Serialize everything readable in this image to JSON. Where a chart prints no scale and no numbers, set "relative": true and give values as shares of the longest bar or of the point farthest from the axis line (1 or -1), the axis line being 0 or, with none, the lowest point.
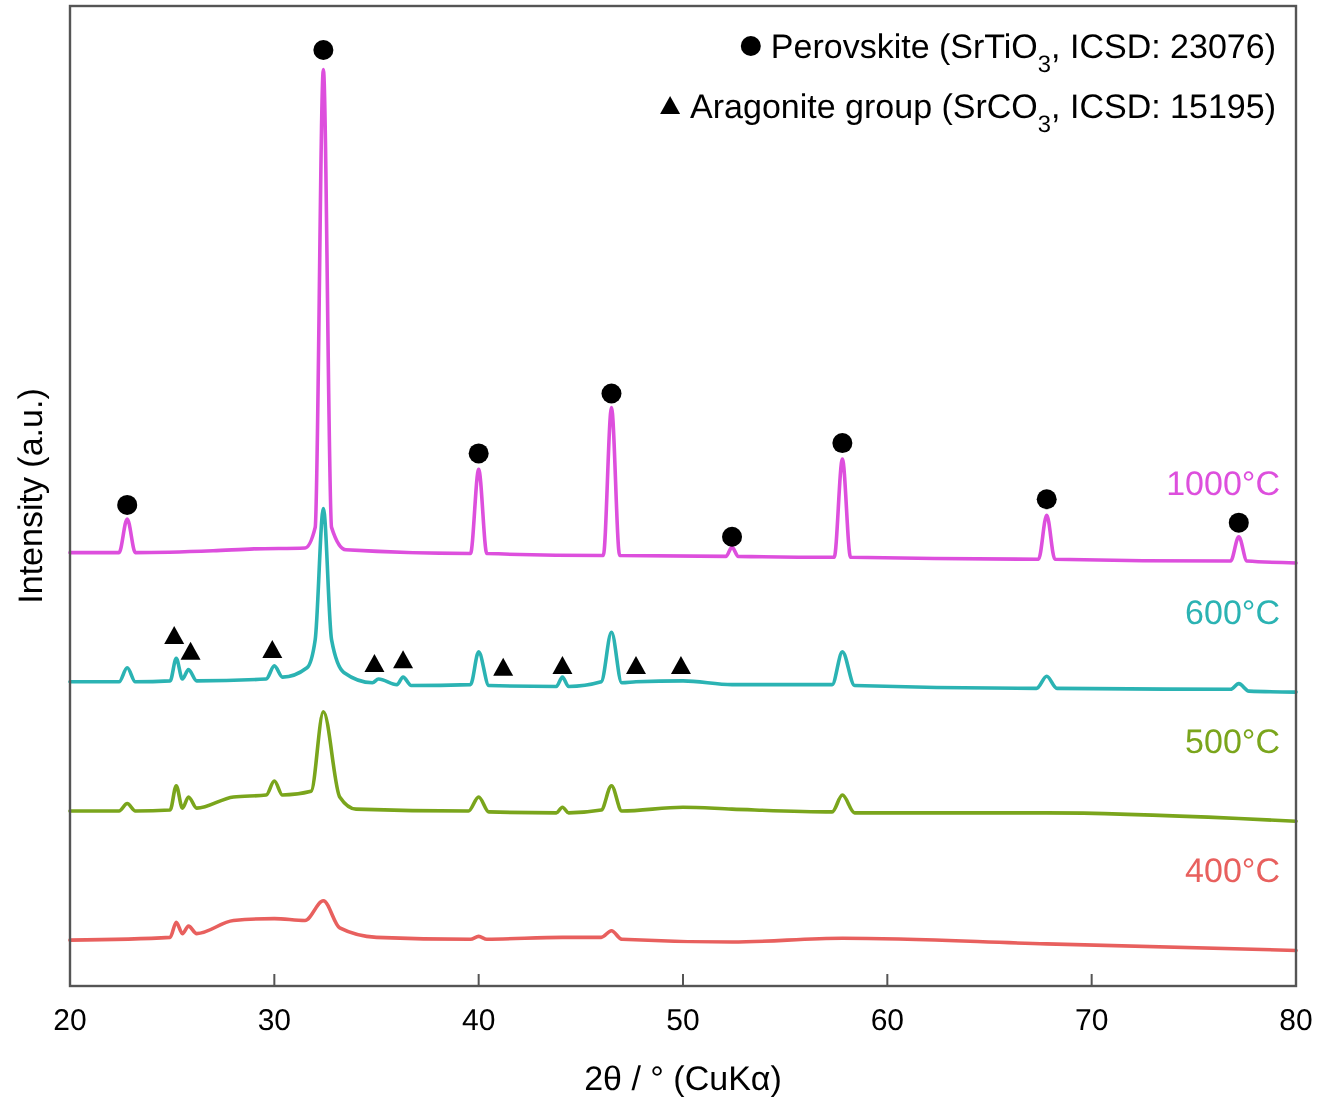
{
  "chart_data": {
    "type": "line",
    "relative": true,
    "xlabel": "2θ / ° (CuKα)",
    "ylabel": "Intensity (a.u.)",
    "xlim": [
      20,
      80
    ],
    "xticks": [
      20,
      30,
      40,
      50,
      60,
      70,
      80
    ],
    "grid": false,
    "legend": "top right",
    "series": [
      {
        "name": "1000°C",
        "color": "#dd4fdd",
        "x": [
          20,
          22.4,
          22.8,
          23.2,
          27,
          29,
          31.5,
          32.0,
          32.4,
          32.8,
          33.5,
          39.6,
          40.0,
          40.4,
          46.1,
          46.5,
          46.9,
          52.1,
          52.4,
          52.7,
          57.4,
          57.8,
          58.2,
          67.4,
          67.8,
          68.2,
          76.8,
          77.2,
          77.6,
          80
        ],
        "values": [
          0.463,
          0.463,
          0.499,
          0.463,
          0.465,
          0.467,
          0.468,
          0.49,
          0.979,
          0.49,
          0.466,
          0.462,
          0.552,
          0.462,
          0.46,
          0.618,
          0.46,
          0.459,
          0.469,
          0.459,
          0.458,
          0.563,
          0.458,
          0.456,
          0.503,
          0.456,
          0.454,
          0.48,
          0.454,
          0.452
        ]
      },
      {
        "name": "600°C",
        "color": "#2bb3b3",
        "x": [
          20,
          22.4,
          22.8,
          23.2,
          24.9,
          25.2,
          25.5,
          25.8,
          26.2,
          29.6,
          30.0,
          30.4,
          31.6,
          32.0,
          32.4,
          32.8,
          33.4,
          34.8,
          35.1,
          36.0,
          36.3,
          36.7,
          39.6,
          40.0,
          40.5,
          43.8,
          44.1,
          44.4,
          46.0,
          46.5,
          47.0,
          47.7,
          50.0,
          52.4,
          57.3,
          57.8,
          58.4,
          67.3,
          67.8,
          68.3,
          76.8,
          77.2,
          77.7,
          80
        ],
        "values": [
          0.325,
          0.325,
          0.34,
          0.325,
          0.326,
          0.35,
          0.328,
          0.338,
          0.326,
          0.328,
          0.342,
          0.33,
          0.34,
          0.37,
          0.51,
          0.37,
          0.335,
          0.324,
          0.328,
          0.322,
          0.33,
          0.321,
          0.322,
          0.357,
          0.321,
          0.32,
          0.33,
          0.32,
          0.325,
          0.378,
          0.324,
          0.325,
          0.326,
          0.322,
          0.322,
          0.357,
          0.321,
          0.318,
          0.331,
          0.318,
          0.317,
          0.323,
          0.315,
          0.314
        ]
      },
      {
        "name": "500°C",
        "color": "#7aa51c",
        "x": [
          20,
          22.4,
          22.8,
          23.2,
          24.9,
          25.2,
          25.5,
          25.8,
          26.2,
          28,
          29.6,
          30.0,
          30.4,
          31.8,
          32.4,
          33.2,
          34,
          39.5,
          40.0,
          40.5,
          43.8,
          44.1,
          44.4,
          46.0,
          46.5,
          47.0,
          50.0,
          52.4,
          57.3,
          57.8,
          58.4,
          67.8,
          77.2,
          80
        ],
        "values": [
          0.187,
          0.187,
          0.195,
          0.187,
          0.188,
          0.214,
          0.19,
          0.202,
          0.19,
          0.202,
          0.204,
          0.219,
          0.204,
          0.208,
          0.293,
          0.202,
          0.189,
          0.187,
          0.202,
          0.186,
          0.185,
          0.191,
          0.185,
          0.188,
          0.214,
          0.187,
          0.191,
          0.189,
          0.186,
          0.204,
          0.185,
          0.185,
          0.179,
          0.176
        ]
      },
      {
        "name": "400°C",
        "color": "#e8605e",
        "x": [
          20,
          24.9,
          25.2,
          25.5,
          25.8,
          26.2,
          28,
          30,
          31.5,
          32.4,
          33.2,
          35,
          39.6,
          40,
          40.4,
          44.1,
          46.0,
          46.5,
          47.0,
          52.4,
          57.8,
          67.8,
          80
        ],
        "values": [
          0.049,
          0.052,
          0.068,
          0.056,
          0.064,
          0.056,
          0.07,
          0.072,
          0.07,
          0.091,
          0.062,
          0.052,
          0.05,
          0.053,
          0.05,
          0.052,
          0.052,
          0.059,
          0.05,
          0.047,
          0.051,
          0.045,
          0.038
        ]
      },
      {
        "type": "scatter",
        "marker": "circle",
        "name": "Perovskite (SrTiO$_{3}$, ICSD: 23076)",
        "color": "#000000",
        "x": [
          22.8,
          32.4,
          40.0,
          46.5,
          52.4,
          57.8,
          67.8,
          77.2
        ],
        "values": [
          0.514,
          1.0,
          0.569,
          0.633,
          0.48,
          0.58,
          0.52,
          0.495
        ]
      },
      {
        "type": "scatter",
        "marker": "triangle",
        "name": "Aragonite group (SrCO$_{3}$, ICSD: 15195)",
        "color": "#000000",
        "x": [
          25.1,
          25.9,
          29.9,
          34.9,
          36.3,
          41.2,
          44.1,
          47.7,
          49.9
        ],
        "values": [
          0.374,
          0.357,
          0.359,
          0.344,
          0.348,
          0.34,
          0.342,
          0.342,
          0.342
        ]
      }
    ]
  }
}
